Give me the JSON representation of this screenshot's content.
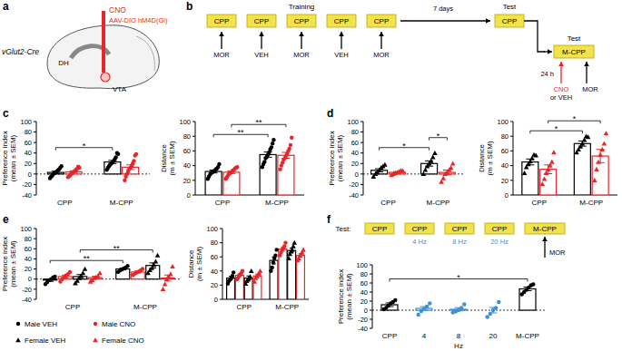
{
  "chart_data": [
    {
      "type": "bar",
      "ylabel": "Preference index (mean ± SEM)",
      "categories": [
        "CPP",
        "M-CPP"
      ],
      "ylim": [
        -40,
        100
      ],
      "yticks": [
        -40,
        -20,
        0,
        20,
        40,
        60,
        80,
        100
      ],
      "series": [
        {
          "color": "#000000",
          "marker": "circle",
          "values": [
            3,
            23
          ],
          "errors": [
            2.5,
            3
          ],
          "points": [
            [
              -8,
              -5,
              -3,
              0,
              2,
              3,
              5,
              7,
              9,
              12,
              15
            ],
            [
              8,
              12,
              15,
              18,
              20,
              22,
              25,
              28,
              32,
              40,
              38
            ]
          ]
        },
        {
          "color": "#e8262a",
          "marker": "circle",
          "values": [
            4,
            13
          ],
          "errors": [
            2,
            4.5
          ],
          "points": [
            [
              -6,
              -4,
              -2,
              0,
              2,
              4,
              6,
              8,
              10,
              14,
              12
            ],
            [
              -12,
              -5,
              0,
              5,
              10,
              12,
              15,
              20,
              25,
              35,
              38
            ]
          ]
        }
      ],
      "significance": [
        {
          "from": [
            0,
            0
          ],
          "to": [
            1,
            0
          ],
          "label": "*"
        }
      ]
    },
    {
      "type": "bar",
      "ylabel": "Distance (m ± SEM)",
      "categories": [
        "CPP",
        "M-CPP"
      ],
      "ylim": [
        0,
        100
      ],
      "yticks": [
        0,
        20,
        40,
        60,
        80,
        100
      ],
      "series": [
        {
          "color": "#000000",
          "marker": "circle",
          "values": [
            32,
            55
          ],
          "errors": [
            2,
            3.5
          ],
          "points": [
            [
              22,
              25,
              28,
              30,
              31,
              32,
              33,
              35,
              36,
              38,
              42
            ],
            [
              38,
              42,
              45,
              50,
              52,
              55,
              58,
              62,
              65,
              70,
              75
            ]
          ]
        },
        {
          "color": "#e8262a",
          "marker": "circle",
          "values": [
            31,
            54
          ],
          "errors": [
            1.8,
            4
          ],
          "points": [
            [
              22,
              24,
              27,
              29,
              30,
              31,
              33,
              34,
              36,
              37,
              38
            ],
            [
              35,
              40,
              44,
              48,
              50,
              53,
              56,
              60,
              63,
              68,
              78
            ]
          ]
        }
      ],
      "significance": [
        {
          "from": [
            0,
            0
          ],
          "to": [
            1,
            0
          ],
          "label": "**"
        },
        {
          "from": [
            0,
            1
          ],
          "to": [
            1,
            1
          ],
          "label": "**"
        }
      ]
    },
    {
      "type": "bar",
      "ylabel": "Preference index (mean ± SEM)",
      "categories": [
        "CPP",
        "M-CPP"
      ],
      "ylim": [
        -40,
        100
      ],
      "yticks": [
        -40,
        -20,
        0,
        20,
        40,
        60,
        80,
        100
      ],
      "series": [
        {
          "color": "#000000",
          "marker": "triangle",
          "values": [
            7,
            20
          ],
          "errors": [
            3,
            5
          ],
          "points": [
            [
              -5,
              0,
              3,
              7,
              12,
              15,
              18
            ],
            [
              0,
              8,
              15,
              20,
              25,
              32,
              40
            ]
          ]
        },
        {
          "color": "#e8262a",
          "marker": "triangle",
          "values": [
            3,
            3
          ],
          "errors": [
            1.5,
            4.5
          ],
          "points": [
            [
              -2,
              0,
              2,
              3,
              5,
              7,
              6
            ],
            [
              -15,
              -8,
              0,
              3,
              8,
              12,
              20
            ]
          ]
        }
      ],
      "significance": [
        {
          "from": [
            0,
            0
          ],
          "to": [
            1,
            0
          ],
          "label": "*"
        },
        {
          "from": [
            1,
            0
          ],
          "to": [
            1,
            1
          ],
          "label": "*"
        }
      ]
    },
    {
      "type": "bar",
      "ylabel": "Distance (m ± SEM)",
      "categories": [
        "CPP",
        "M-CPP"
      ],
      "ylim": [
        0,
        100
      ],
      "yticks": [
        0,
        20,
        40,
        60,
        80,
        100
      ],
      "series": [
        {
          "color": "#000000",
          "marker": "triangle",
          "values": [
            45,
            70
          ],
          "errors": [
            4,
            3.5
          ],
          "points": [
            [
              30,
              38,
              42,
              46,
              50,
              55,
              54
            ],
            [
              58,
              62,
              66,
              70,
              75,
              80,
              79
            ]
          ]
        },
        {
          "color": "#e8262a",
          "marker": "triangle",
          "values": [
            35,
            53
          ],
          "errors": [
            6,
            9
          ],
          "points": [
            [
              15,
              22,
              30,
              35,
              40,
              45,
              58
            ],
            [
              20,
              35,
              45,
              55,
              62,
              70,
              84
            ]
          ]
        }
      ],
      "significance": [
        {
          "from": [
            0,
            0
          ],
          "to": [
            1,
            0
          ],
          "label": "*"
        },
        {
          "from": [
            0,
            1
          ],
          "to": [
            1,
            1
          ],
          "label": "*"
        }
      ]
    },
    {
      "type": "bar",
      "ylabel": "Preference index (mean ± SEM)",
      "categories": [
        "CPP",
        "M-CPP"
      ],
      "ylim": [
        -40,
        100
      ],
      "yticks": [
        -40,
        -20,
        0,
        20,
        40,
        60,
        80,
        100
      ],
      "series": [
        {
          "color": "#000000",
          "marker": "circle",
          "values": [
            -2,
            20
          ],
          "errors": [
            2.5,
            1.8
          ],
          "points": [
            [
              -10,
              -6,
              -2,
              0,
              3,
              5
            ],
            [
              14,
              17,
              19,
              21,
              23,
              26
            ]
          ]
        },
        {
          "color": "#e8262a",
          "marker": "circle",
          "values": [
            5,
            14
          ],
          "errors": [
            3,
            2
          ],
          "points": [
            [
              -5,
              0,
              4,
              7,
              10,
              14
            ],
            [
              8,
              11,
              13,
              15,
              17,
              20
            ]
          ]
        },
        {
          "color": "#000000",
          "marker": "triangle",
          "values": [
            5,
            27
          ],
          "errors": [
            4,
            5
          ],
          "points": [
            [
              -8,
              -3,
              2,
              6,
              12,
              20
            ],
            [
              12,
              18,
              22,
              28,
              35,
              47
            ]
          ]
        },
        {
          "color": "#e8262a",
          "marker": "triangle",
          "values": [
            3,
            2
          ],
          "errors": [
            2.5,
            6
          ],
          "points": [
            [
              -5,
              -2,
              2,
              4,
              6,
              12
            ],
            [
              -20,
              -10,
              0,
              5,
              10,
              25
            ]
          ]
        }
      ],
      "significance": [
        {
          "from": [
            0,
            0
          ],
          "to": [
            1,
            0
          ],
          "label": "**"
        },
        {
          "from": [
            0,
            2
          ],
          "to": [
            1,
            2
          ],
          "label": "**"
        }
      ]
    },
    {
      "type": "bar",
      "ylabel": "Distance (m ± SEM)",
      "categories": [
        "CPP",
        "M-CPP"
      ],
      "ylim": [
        0,
        100
      ],
      "yticks": [
        0,
        20,
        40,
        60,
        80,
        100
      ],
      "series": [
        {
          "color": "#000000",
          "marker": "circle",
          "values": [
            30,
            55
          ],
          "errors": [
            2.5,
            5
          ],
          "points": [
            [
              22,
              26,
              28,
              30,
              33,
              38
            ],
            [
              40,
              45,
              52,
              58,
              62,
              70
            ]
          ]
        },
        {
          "color": "#e8262a",
          "marker": "circle",
          "values": [
            34,
            71
          ],
          "errors": [
            2,
            3
          ],
          "points": [
            [
              28,
              30,
              33,
              35,
              37,
              40
            ],
            [
              62,
              66,
              70,
              72,
              75,
              80
            ]
          ]
        },
        {
          "color": "#000000",
          "marker": "triangle",
          "values": [
            30,
            69
          ],
          "errors": [
            3,
            3.5
          ],
          "points": [
            [
              22,
              26,
              28,
              30,
              32,
              40
            ],
            [
              58,
              64,
              68,
              70,
              75,
              80
            ]
          ]
        },
        {
          "color": "#e8262a",
          "marker": "triangle",
          "values": [
            33,
            62
          ],
          "errors": [
            2.5,
            2.5
          ],
          "points": [
            [
              25,
              30,
              33,
              35,
              37,
              40
            ],
            [
              55,
              58,
              62,
              64,
              66,
              70
            ]
          ]
        }
      ]
    },
    {
      "type": "bar",
      "ylabel": "Preference index (mean ± SEM)",
      "categories": [
        "CPP",
        "4",
        "8",
        "20",
        "M-CPP"
      ],
      "xlabel": "Hz",
      "ylim": [
        -40,
        100
      ],
      "yticks": [
        -40,
        -20,
        0,
        20,
        40,
        60,
        80,
        100
      ],
      "series": [
        {
          "colors": [
            "#000000",
            "#3d8fd8",
            "#3d8fd8",
            "#3d8fd8",
            "#000000"
          ],
          "marker": "circle",
          "values": [
            12,
            4,
            2,
            0,
            47
          ],
          "errors": [
            4,
            4,
            3.5,
            6,
            4
          ],
          "points": [
            [
              2,
              5,
              10,
              15,
              18,
              22
            ],
            [
              -10,
              -2,
              3,
              8,
              15
            ],
            [
              -5,
              -3,
              0,
              5,
              13
            ],
            [
              -15,
              -8,
              0,
              5,
              18
            ],
            [
              35,
              40,
              45,
              50,
              55,
              57
            ]
          ]
        }
      ],
      "significance": [
        {
          "from": [
            0,
            0
          ],
          "to": [
            4,
            0
          ],
          "label": "*"
        }
      ]
    }
  ],
  "legend_entries": [
    {
      "name": "Male VEH",
      "color": "#000000",
      "marker": "circle"
    },
    {
      "name": "Male CNO",
      "color": "#e8262a",
      "marker": "circle"
    },
    {
      "name": "Female VEH",
      "color": "#000000",
      "marker": "triangle"
    },
    {
      "name": "Female CNO",
      "color": "#e8262a",
      "marker": "triangle"
    }
  ],
  "panel_labels": [
    "a",
    "b",
    "c",
    "d",
    "e",
    "f"
  ],
  "diagram_a": {
    "labels": [
      "vGlut2-Cre",
      "CNO",
      "AAV-DIO hM4D(Gi)",
      "DH",
      "VTA"
    ]
  },
  "diagram_b": {
    "training_label": "Training",
    "training_boxes": [
      "CPP",
      "CPP",
      "CPP",
      "CPP",
      "CPP"
    ],
    "training_treatments": [
      "MOR",
      "VEH",
      "MOR",
      "VEH",
      "MOR"
    ],
    "delay1": "7 days",
    "test1_label": "Test",
    "test1_box": "CPP",
    "delay2": "24 h",
    "test2_label": "Test",
    "test2_box": "M-CPP",
    "pretreatment": "CNO",
    "pretreatment_alt": "or VEH",
    "test2_treatment": "MOR"
  },
  "diagram_f": {
    "label": "Test:",
    "boxes": [
      "CPP",
      "CPP",
      "CPP",
      "CPP",
      "M-CPP"
    ],
    "stimulations": [
      "4 Hz",
      "8 Hz",
      "20 Hz"
    ],
    "treatment": "MOR"
  }
}
